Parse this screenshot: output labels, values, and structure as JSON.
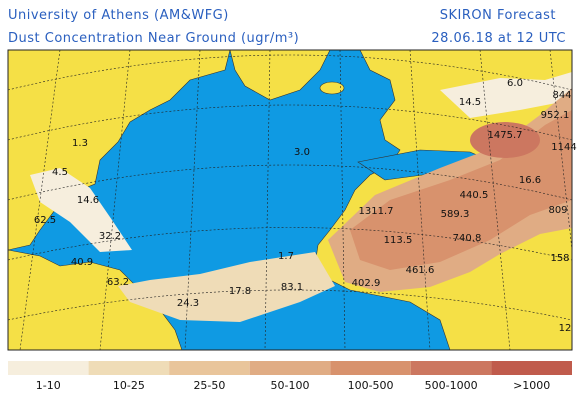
{
  "header": {
    "left_line1": "University of Athens (AM&WFG)",
    "right_line1": "SKIRON Forecast",
    "left_line2": "Dust Concentration Near Ground (ugr/m³)",
    "right_line2": "28.06.18 at 12 UTC"
  },
  "map_labels": [
    "1.3",
    "4.5",
    "14.6",
    "62.5",
    "32.2",
    "40.9",
    "63.2",
    "24.3",
    "17.8",
    "83.1",
    "1.7",
    "3.0",
    "402.9",
    "461.6",
    "113.5",
    "740.8",
    "589.3",
    "1311.7",
    "440.5",
    "16.6",
    "809",
    "1475.7",
    "1144",
    "952.1",
    "844",
    "6.0",
    "14.5",
    "158",
    "12"
  ],
  "legend": [
    {
      "label": "1-10",
      "color": "#f6eedd"
    },
    {
      "label": "10-25",
      "color": "#efdcb7"
    },
    {
      "label": "25-50",
      "color": "#e9c59b"
    },
    {
      "label": "50-100",
      "color": "#e0ac84"
    },
    {
      "label": "100-500",
      "color": "#d8926d"
    },
    {
      "label": "500-1000",
      "color": "#cc7760"
    },
    {
      "label": ">1000",
      "color": "#c05b4c"
    }
  ]
}
